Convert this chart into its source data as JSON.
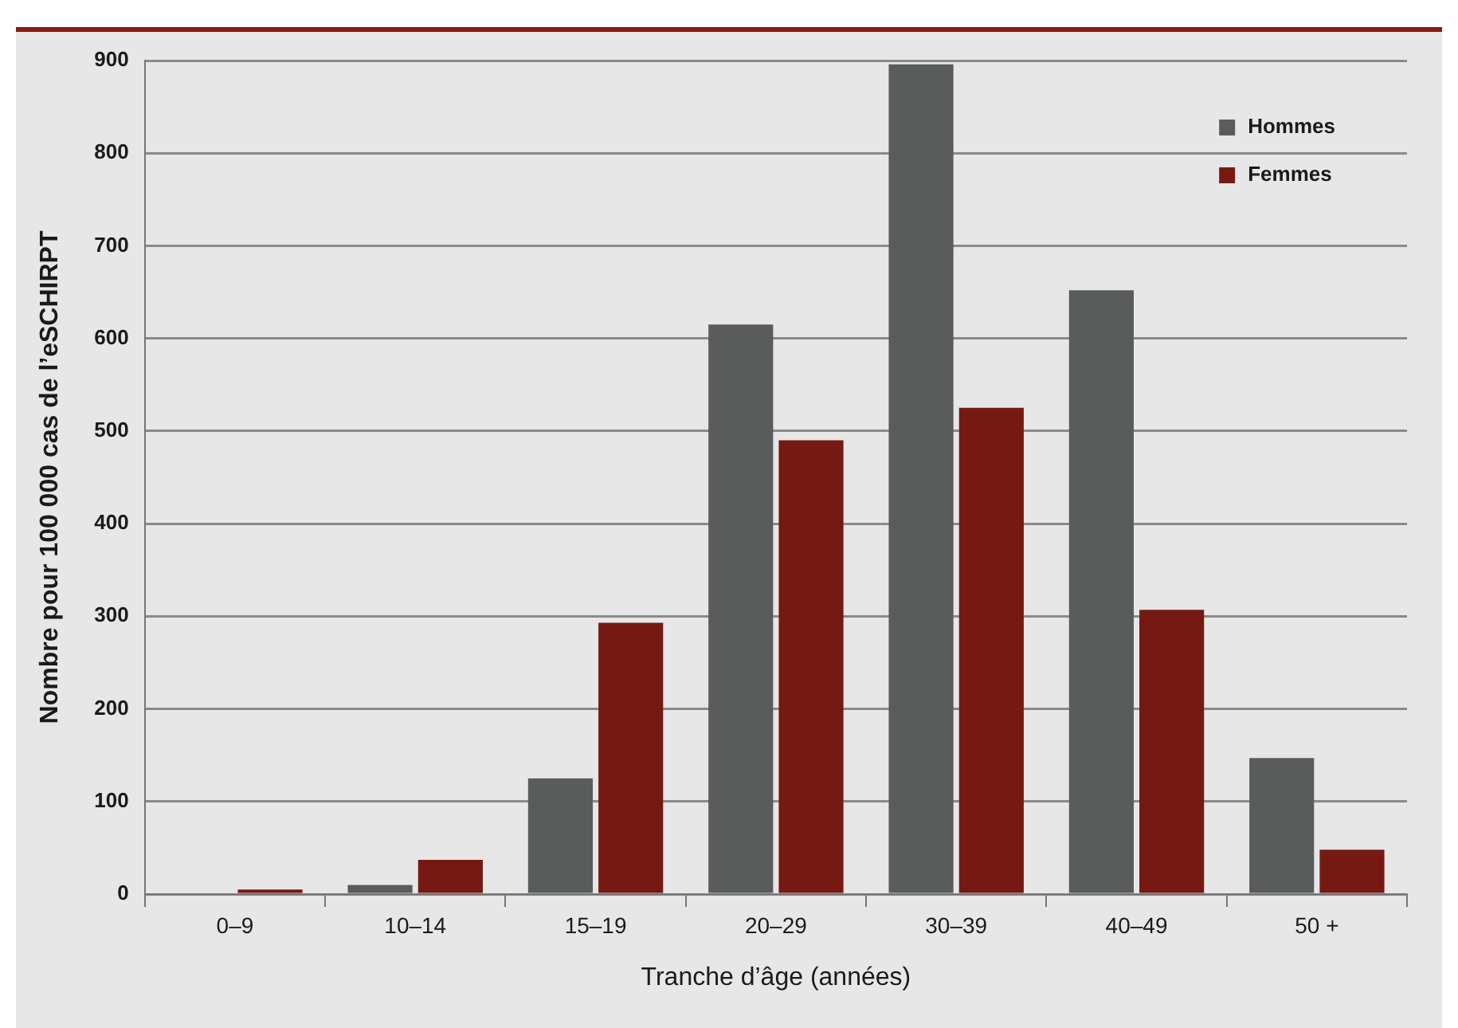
{
  "chart_data": {
    "type": "bar",
    "xlabel": "Tranche d’âge (années)",
    "ylabel": "Nombre pour 100 000 cas de l’eSCHIRPT",
    "categories": [
      "0–9",
      "10–14",
      "15–19",
      "20–29",
      "30–39",
      "40–49",
      "50 +"
    ],
    "series": [
      {
        "name": "Hommes",
        "color": "#5a5c5b",
        "values": [
          0,
          10,
          125,
          615,
          896,
          652,
          147
        ]
      },
      {
        "name": "Femmes",
        "color": "#771913",
        "values": [
          5,
          37,
          293,
          490,
          525,
          307,
          48
        ]
      }
    ],
    "ylim": [
      0,
      900
    ],
    "yticks": [
      0,
      100,
      200,
      300,
      400,
      500,
      600,
      700,
      800,
      900
    ],
    "grid": "y",
    "legend": "top right"
  }
}
